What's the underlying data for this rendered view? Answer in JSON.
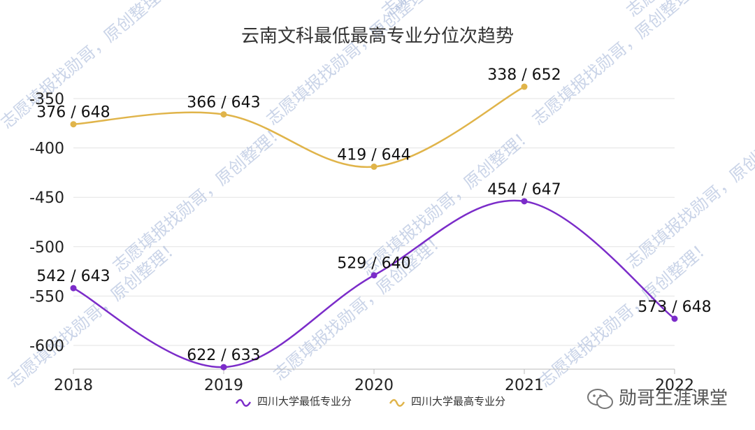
{
  "chart_data": {
    "type": "line",
    "title": "云南文科最低最高专业分位次趋势",
    "categories": [
      "2018",
      "2019",
      "2020",
      "2021",
      "2022"
    ],
    "y_ticks": [
      "-350",
      "-400",
      "-450",
      "-500",
      "-550",
      "-600"
    ],
    "ylim": [
      -622,
      -330
    ],
    "grid": true,
    "legend_position": "bottom-center",
    "series": [
      {
        "name": "四川大学最低专业分",
        "color": "#7b2cc9",
        "values": [
          -542,
          -622,
          -529,
          -454,
          -573
        ],
        "labels": [
          "542 / 643",
          "622 / 633",
          "529 / 640",
          "454 / 647",
          "573 / 648"
        ]
      },
      {
        "name": "四川大学最高专业分",
        "color": "#e0b44a",
        "values": [
          -376,
          -366,
          -419,
          -338,
          null
        ],
        "labels": [
          "376 / 648",
          "366 / 643",
          "419 / 644",
          "338 / 652",
          null
        ]
      }
    ]
  },
  "watermark_text": "志愿填报找勋哥，原创整理！",
  "brand": {
    "icon": "wechat-icon",
    "text": "勋哥生涯课堂"
  }
}
